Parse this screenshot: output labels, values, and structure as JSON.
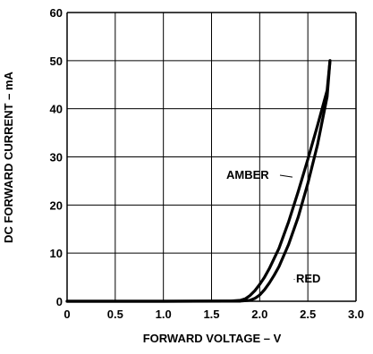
{
  "chart_data": {
    "type": "line",
    "title": "",
    "xlabel": "FORWARD VOLTAGE – V",
    "ylabel": "DC FORWARD CURRENT – mA",
    "xlim": [
      0,
      3.0
    ],
    "ylim": [
      0,
      60
    ],
    "x_ticks": [
      0,
      0.5,
      1.0,
      1.5,
      2.0,
      2.5,
      3.0
    ],
    "x_tick_labels": [
      "0",
      "0.5",
      "1.0",
      "1.5",
      "2.0",
      "2.5",
      "3.0"
    ],
    "y_ticks": [
      0,
      10,
      20,
      30,
      40,
      50,
      60
    ],
    "y_tick_labels": [
      "0",
      "10",
      "20",
      "30",
      "40",
      "50",
      "60"
    ],
    "grid": true,
    "legend": "none",
    "series": [
      {
        "name": "AMBER",
        "x": [
          0,
          1.0,
          1.7,
          1.8,
          1.85,
          1.9,
          1.95,
          2.0,
          2.05,
          2.1,
          2.2,
          2.3,
          2.4,
          2.5,
          2.6,
          2.7,
          2.73
        ],
        "y": [
          0,
          0,
          0.05,
          0.2,
          0.5,
          1.2,
          2.2,
          3.5,
          5.0,
          6.8,
          11.0,
          16.5,
          22.8,
          29.5,
          36.5,
          43.8,
          50
        ]
      },
      {
        "name": "RED",
        "x": [
          0,
          1.0,
          1.8,
          1.9,
          1.95,
          2.0,
          2.05,
          2.1,
          2.15,
          2.2,
          2.3,
          2.4,
          2.5,
          2.6,
          2.7,
          2.73
        ],
        "y": [
          0,
          0,
          0.03,
          0.2,
          0.6,
          1.3,
          2.4,
          3.8,
          5.4,
          7.2,
          11.8,
          17.5,
          24.5,
          32.5,
          42.5,
          50
        ]
      }
    ],
    "annotations": [
      {
        "text": "AMBER",
        "series": "AMBER",
        "x": 2.34,
        "y": 25.8
      },
      {
        "text": "RED",
        "series": "RED",
        "x": 2.36,
        "y": 4.5
      }
    ],
    "style": {
      "line_color": "#000000",
      "grid_color": "#000000",
      "background": "#ffffff"
    }
  }
}
